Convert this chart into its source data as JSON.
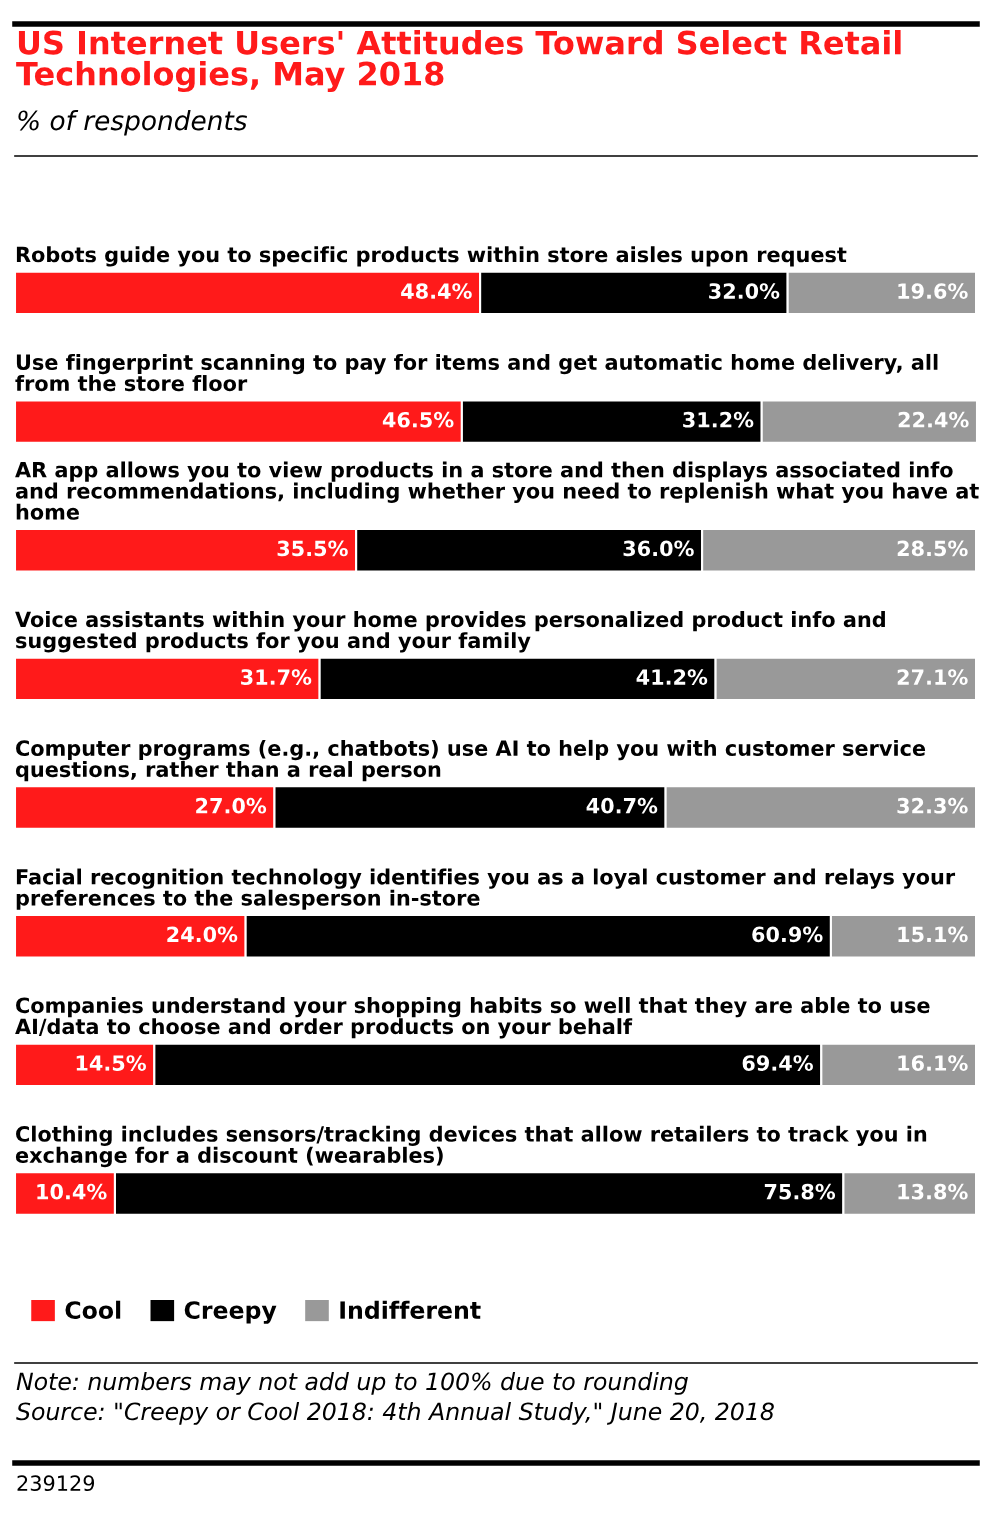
{
  "chart_data": {
    "type": "bar",
    "orientation": "horizontal",
    "stacked": true,
    "title": "US Internet Users' Attitudes Toward Select Retail Technologies, May 2018",
    "subtitle": "% of respondents",
    "categories": [
      "Robots guide you to specific products within store aisles upon request",
      "Use fingerprint scanning to pay for items and get automatic home delivery, all from the store floor",
      "AR app allows you to view products in a store and then displays associated info and recommendations, including whether you need to replenish what you have at home",
      "Voice assistants within your home provides personalized product info and suggested products for you and your family",
      "Computer programs (e.g., chatbots) use AI to help you with customer service questions, rather than a real person",
      "Facial recognition technology identifies you as a loyal customer and relays your preferences to the salesperson in-store",
      "Companies understand your shopping habits so well that they are able to use AI/data to choose and order products on your behalf",
      "Clothing includes sensors/tracking devices that allow retailers to track you in exchange for a discount (wearables)"
    ],
    "series": [
      {
        "name": "Cool",
        "color": "#ff1a1a",
        "values": [
          48.4,
          46.5,
          35.5,
          31.7,
          27.0,
          24.0,
          14.5,
          10.4
        ],
        "value_labels": [
          "48.4%",
          "46.5%",
          "35.5%",
          "31.7%",
          "27.0%",
          "24.0%",
          "14.5%",
          "10.4%"
        ]
      },
      {
        "name": "Creepy",
        "color": "#000000",
        "values": [
          32.0,
          31.2,
          36.0,
          41.2,
          40.7,
          60.9,
          69.4,
          75.8
        ],
        "value_labels": [
          "32.0%",
          "31.2%",
          "36.0%",
          "41.2%",
          "40.7%",
          "60.9%",
          "69.4%",
          "75.8%"
        ]
      },
      {
        "name": "Indifferent",
        "color": "#999999",
        "values": [
          19.6,
          22.4,
          28.5,
          27.1,
          32.3,
          15.1,
          16.1,
          13.8
        ],
        "value_labels": [
          "19.6%",
          "22.4%",
          "28.5%",
          "27.1%",
          "32.3%",
          "15.1%",
          "16.1%",
          "13.8%"
        ]
      }
    ],
    "xlim": [
      0,
      100.1
    ],
    "legend": "bottom",
    "annotations": [
      "Note: numbers may not add up to 100% due to rounding",
      "Source: \"Creepy or Cool 2018: 4th Annual Study,\" June 20, 2018",
      "239129"
    ]
  }
}
